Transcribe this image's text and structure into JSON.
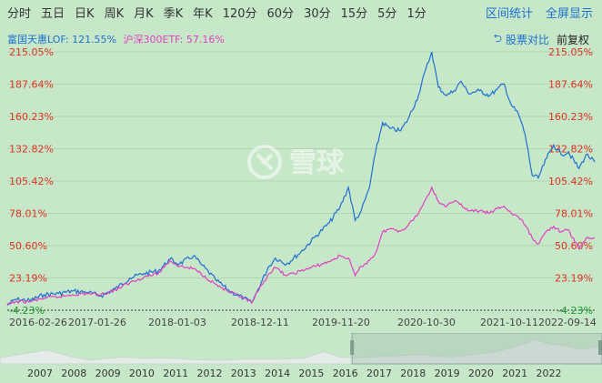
{
  "toolbar": {
    "periods": [
      "分时",
      "五日",
      "日K",
      "周K",
      "月K",
      "季K",
      "年K",
      "120分",
      "60分",
      "30分",
      "15分",
      "5分",
      "1分"
    ],
    "interval_stats": "区间统计",
    "fullscreen": "全屏显示"
  },
  "legend": {
    "series1": "富国天惠LOF: 121.55%",
    "series2": "沪深300ETF: 57.16%"
  },
  "controls": {
    "compare_stocks": "股票对比",
    "adjust": "前复权"
  },
  "watermark": "雪球",
  "colors": {
    "background": "#c7e8c8",
    "series1": "#1e6fd0",
    "series2": "#e040c0",
    "axis_label": "#e03020",
    "axis_label_negative": "#1a9a30",
    "link": "#1e6fd0"
  },
  "chart_data": {
    "type": "line",
    "y_unit": "cumulative return (%)",
    "y_ticks": [
      "215.05%",
      "187.64%",
      "160.23%",
      "132.82%",
      "105.42%",
      "78.01%",
      "50.60%",
      "23.19%",
      "-4.23%"
    ],
    "ylim": [
      -4.23,
      215.05
    ],
    "x_ticks": [
      "2016-02-26",
      "2017-01-26",
      "2018-01-03",
      "2018-12-11",
      "2019-11-20",
      "2020-10-30",
      "2021-10-11",
      "2022-09-14"
    ],
    "xlim": [
      "2016-02-26",
      "2023-01-06"
    ],
    "grid": true,
    "series": [
      {
        "name": "富国天惠LOF",
        "color": "#1e6fd0",
        "points": [
          [
            "2016-02-26",
            0
          ],
          [
            "2016-04-01",
            5
          ],
          [
            "2016-06-01",
            4
          ],
          [
            "2016-08-01",
            9
          ],
          [
            "2016-10-01",
            10
          ],
          [
            "2016-12-01",
            12
          ],
          [
            "2017-02-01",
            11
          ],
          [
            "2017-04-01",
            8
          ],
          [
            "2017-06-01",
            14
          ],
          [
            "2017-08-01",
            23
          ],
          [
            "2017-10-01",
            27
          ],
          [
            "2017-12-01",
            29
          ],
          [
            "2018-01-20",
            39
          ],
          [
            "2018-03-01",
            35
          ],
          [
            "2018-05-01",
            42
          ],
          [
            "2018-06-01",
            35
          ],
          [
            "2018-08-01",
            22
          ],
          [
            "2018-10-01",
            12
          ],
          [
            "2018-12-01",
            6
          ],
          [
            "2019-01-04",
            2
          ],
          [
            "2019-02-01",
            14
          ],
          [
            "2019-03-15",
            32
          ],
          [
            "2019-04-15",
            40
          ],
          [
            "2019-06-01",
            35
          ],
          [
            "2019-08-01",
            45
          ],
          [
            "2019-10-01",
            58
          ],
          [
            "2019-12-01",
            70
          ],
          [
            "2020-01-15",
            83
          ],
          [
            "2020-02-20",
            100
          ],
          [
            "2020-03-20",
            72
          ],
          [
            "2020-04-15",
            80
          ],
          [
            "2020-05-20",
            100
          ],
          [
            "2020-06-15",
            130
          ],
          [
            "2020-07-15",
            155
          ],
          [
            "2020-08-15",
            150
          ],
          [
            "2020-09-30",
            148
          ],
          [
            "2020-11-01",
            158
          ],
          [
            "2020-12-15",
            178
          ],
          [
            "2021-01-15",
            200
          ],
          [
            "2021-02-10",
            215
          ],
          [
            "2021-03-10",
            185
          ],
          [
            "2021-04-15",
            178
          ],
          [
            "2021-05-15",
            182
          ],
          [
            "2021-06-15",
            190
          ],
          [
            "2021-07-15",
            180
          ],
          [
            "2021-09-01",
            182
          ],
          [
            "2021-10-15",
            178
          ],
          [
            "2021-11-15",
            183
          ],
          [
            "2021-12-15",
            188
          ],
          [
            "2022-01-15",
            170
          ],
          [
            "2022-02-15",
            162
          ],
          [
            "2022-03-15",
            145
          ],
          [
            "2022-04-15",
            110
          ],
          [
            "2022-05-10",
            108
          ],
          [
            "2022-06-15",
            125
          ],
          [
            "2022-07-15",
            136
          ],
          [
            "2022-08-15",
            128
          ],
          [
            "2022-09-15",
            130
          ],
          [
            "2022-10-31",
            116
          ],
          [
            "2022-12-01",
            128
          ],
          [
            "2023-01-06",
            121.55
          ]
        ]
      },
      {
        "name": "沪深300ETF",
        "color": "#e040c0",
        "points": [
          [
            "2016-02-26",
            0
          ],
          [
            "2016-04-01",
            3
          ],
          [
            "2016-06-01",
            3
          ],
          [
            "2016-08-01",
            6
          ],
          [
            "2016-10-01",
            7
          ],
          [
            "2016-12-01",
            9
          ],
          [
            "2017-02-01",
            10
          ],
          [
            "2017-04-01",
            9
          ],
          [
            "2017-06-01",
            13
          ],
          [
            "2017-08-01",
            19
          ],
          [
            "2017-10-01",
            24
          ],
          [
            "2017-12-01",
            27
          ],
          [
            "2018-01-20",
            38
          ],
          [
            "2018-03-01",
            33
          ],
          [
            "2018-05-01",
            31
          ],
          [
            "2018-06-01",
            27
          ],
          [
            "2018-08-01",
            18
          ],
          [
            "2018-10-01",
            11
          ],
          [
            "2018-12-01",
            6
          ],
          [
            "2019-01-04",
            2
          ],
          [
            "2019-02-01",
            12
          ],
          [
            "2019-03-15",
            26
          ],
          [
            "2019-04-15",
            32
          ],
          [
            "2019-06-01",
            25
          ],
          [
            "2019-08-01",
            29
          ],
          [
            "2019-10-01",
            33
          ],
          [
            "2019-12-01",
            37
          ],
          [
            "2020-01-15",
            42
          ],
          [
            "2020-02-20",
            40
          ],
          [
            "2020-03-20",
            25
          ],
          [
            "2020-04-15",
            33
          ],
          [
            "2020-05-20",
            38
          ],
          [
            "2020-06-15",
            44
          ],
          [
            "2020-07-15",
            62
          ],
          [
            "2020-08-15",
            65
          ],
          [
            "2020-09-30",
            63
          ],
          [
            "2020-11-01",
            68
          ],
          [
            "2020-12-15",
            78
          ],
          [
            "2021-01-15",
            90
          ],
          [
            "2021-02-10",
            100
          ],
          [
            "2021-03-10",
            88
          ],
          [
            "2021-04-15",
            84
          ],
          [
            "2021-05-15",
            88
          ],
          [
            "2021-06-15",
            86
          ],
          [
            "2021-07-15",
            80
          ],
          [
            "2021-09-01",
            80
          ],
          [
            "2021-10-15",
            78
          ],
          [
            "2021-11-15",
            82
          ],
          [
            "2021-12-15",
            84
          ],
          [
            "2022-01-15",
            78
          ],
          [
            "2022-02-15",
            75
          ],
          [
            "2022-03-15",
            68
          ],
          [
            "2022-04-15",
            57
          ],
          [
            "2022-05-10",
            52
          ],
          [
            "2022-06-15",
            63
          ],
          [
            "2022-07-15",
            67
          ],
          [
            "2022-08-15",
            62
          ],
          [
            "2022-09-15",
            64
          ],
          [
            "2022-10-31",
            48
          ],
          [
            "2022-12-01",
            57
          ],
          [
            "2023-01-06",
            57.16
          ]
        ]
      }
    ],
    "navigator": {
      "year_labels": [
        "2007",
        "2008",
        "2009",
        "2010",
        "2011",
        "2012",
        "2013",
        "2014",
        "2015",
        "2016",
        "2017",
        "2018",
        "2019",
        "2020",
        "2021",
        "2022"
      ],
      "range": [
        2006.5,
        2023.0
      ],
      "selected": [
        2016.15,
        2023.0
      ],
      "profile": [
        [
          2006.5,
          20
        ],
        [
          2007.0,
          30
        ],
        [
          2007.8,
          45
        ],
        [
          2008.5,
          22
        ],
        [
          2009.0,
          12
        ],
        [
          2009.8,
          22
        ],
        [
          2010.5,
          18
        ],
        [
          2011.0,
          20
        ],
        [
          2011.8,
          14
        ],
        [
          2012.5,
          12
        ],
        [
          2013.3,
          16
        ],
        [
          2014.0,
          15
        ],
        [
          2014.8,
          18
        ],
        [
          2015.4,
          40
        ],
        [
          2015.8,
          22
        ],
        [
          2016.2,
          20
        ],
        [
          2017.0,
          24
        ],
        [
          2018.0,
          30
        ],
        [
          2018.9,
          22
        ],
        [
          2019.5,
          32
        ],
        [
          2020.0,
          38
        ],
        [
          2020.5,
          52
        ],
        [
          2021.0,
          70
        ],
        [
          2021.1,
          80
        ],
        [
          2021.6,
          64
        ],
        [
          2022.0,
          60
        ],
        [
          2022.4,
          48
        ],
        [
          2022.8,
          55
        ],
        [
          2023.0,
          56
        ]
      ]
    }
  }
}
